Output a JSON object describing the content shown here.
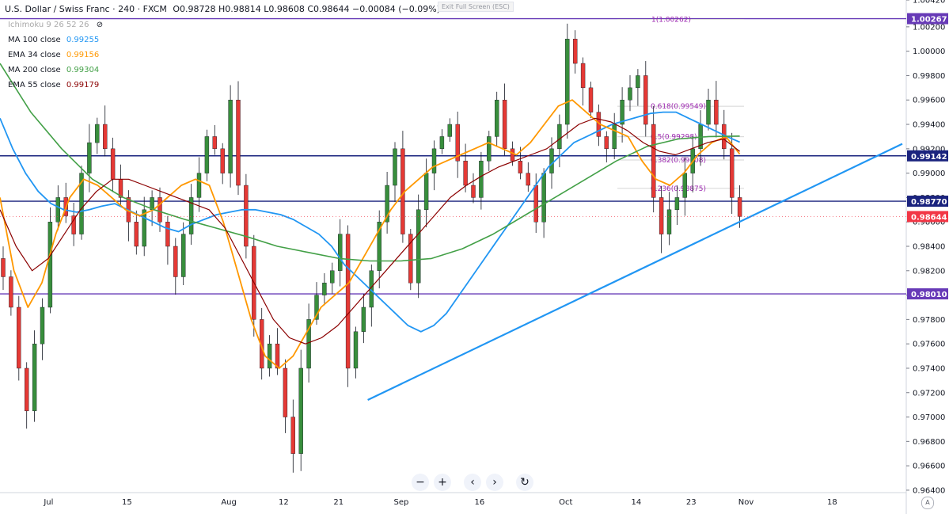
{
  "header": {
    "symbol": "U.S. Dollar / Swiss Franc · 240 · FXCM",
    "ohlc": "O0.98728  H0.98814  L0.98608  C0.98644  −0.00084 (−0.09%)"
  },
  "exit_fullscreen": "Exit Full Screen (ESC)",
  "indicators": [
    {
      "label": "MA 100 close",
      "value": "0.99255",
      "color": "#2196f3"
    },
    {
      "label": "EMA 34 close",
      "value": "0.99156",
      "color": "#ff9800"
    },
    {
      "label": "MA 200 close",
      "value": "0.99304",
      "color": "#43a047"
    },
    {
      "label": "EMA 55 close",
      "value": "0.99179",
      "color": "#8b0000"
    }
  ],
  "ichimoku_label": "Ichimoku 9 26 52 26",
  "toolbar": {
    "zoom_out": "−",
    "zoom_in": "+",
    "back": "‹",
    "forward": "›",
    "reset": "↻"
  },
  "auto_label": "A",
  "chart_data": {
    "type": "candlestick",
    "ylim": [
      0.9638,
      1.0042
    ],
    "y_ticks": [
      "1.00420",
      "1.00200",
      "1.00000",
      "0.99800",
      "0.99600",
      "0.99400",
      "0.99200",
      "0.99000",
      "0.98800",
      "0.98600",
      "0.98400",
      "0.98200",
      "0.98000",
      "0.97800",
      "0.97600",
      "0.97400",
      "0.97200",
      "0.97000",
      "0.96800",
      "0.96600",
      "0.96400"
    ],
    "x_ticks": [
      {
        "label": "Jul",
        "i": 6
      },
      {
        "label": "15",
        "i": 16
      },
      {
        "label": "Aug",
        "i": 29
      },
      {
        "label": "12",
        "i": 36
      },
      {
        "label": "21",
        "i": 43
      },
      {
        "label": "Sep",
        "i": 51
      },
      {
        "label": "16",
        "i": 61
      },
      {
        "label": "Oct",
        "i": 72
      },
      {
        "label": "14",
        "i": 81
      },
      {
        "label": "23",
        "i": 88
      },
      {
        "label": "Nov",
        "i": 95
      },
      {
        "label": "18",
        "i": 106
      }
    ],
    "candle_count": 95,
    "close_path": [
      0.9815,
      0.979,
      0.974,
      0.9705,
      0.976,
      0.979,
      0.986,
      0.988,
      0.9865,
      0.985,
      0.99,
      0.9925,
      0.994,
      0.992,
      0.9895,
      0.988,
      0.986,
      0.984,
      0.987,
      0.988,
      0.986,
      0.984,
      0.9815,
      0.985,
      0.988,
      0.99,
      0.993,
      0.992,
      0.99,
      0.996,
      0.989,
      0.984,
      0.978,
      0.974,
      0.976,
      0.974,
      0.97,
      0.967,
      0.974,
      0.978,
      0.98,
      0.981,
      0.982,
      0.985,
      0.974,
      0.977,
      0.979,
      0.982,
      0.986,
      0.989,
      0.992,
      0.985,
      0.981,
      0.987,
      0.99,
      0.992,
      0.993,
      0.994,
      0.991,
      0.989,
      0.988,
      0.991,
      0.993,
      0.996,
      0.992,
      0.991,
      0.99,
      0.989,
      0.986,
      0.99,
      0.992,
      0.994,
      1.001,
      0.999,
      0.997,
      0.995,
      0.993,
      0.992,
      0.994,
      0.996,
      0.997,
      0.998,
      0.994,
      0.988,
      0.985,
      0.987,
      0.988,
      0.99,
      0.992,
      0.994,
      0.996,
      0.994,
      0.992,
      0.988,
      0.98644
    ],
    "series": [
      {
        "name": "MA 100 close",
        "values": [
          0.9945,
          0.992,
          0.99,
          0.9885,
          0.9875,
          0.987,
          0.9868,
          0.987,
          0.9873,
          0.9875,
          0.987,
          0.9865,
          0.986,
          0.9855,
          0.9852,
          0.9858,
          0.9862,
          0.9866,
          0.9868,
          0.987,
          0.987,
          0.9868,
          0.9866,
          0.9862,
          0.9856,
          0.985,
          0.984,
          0.9825,
          0.9815,
          0.9805,
          0.9795,
          0.9785,
          0.9775,
          0.977,
          0.9775,
          0.9785,
          0.98,
          0.9815,
          0.983,
          0.9845,
          0.986,
          0.9875,
          0.989,
          0.9905,
          0.9915,
          0.9925,
          0.993,
          0.9935,
          0.994,
          0.9943,
          0.9946,
          0.9949,
          0.995,
          0.995,
          0.9945,
          0.994,
          0.9935,
          0.993,
          0.99255
        ]
      },
      {
        "name": "EMA 34 close",
        "values": [
          0.988,
          0.982,
          0.979,
          0.981,
          0.985,
          0.988,
          0.9895,
          0.989,
          0.988,
          0.987,
          0.9865,
          0.987,
          0.988,
          0.989,
          0.9895,
          0.989,
          0.986,
          0.982,
          0.978,
          0.975,
          0.974,
          0.975,
          0.977,
          0.979,
          0.98,
          0.981,
          0.983,
          0.985,
          0.987,
          0.9885,
          0.9895,
          0.9905,
          0.991,
          0.9915,
          0.992,
          0.9925,
          0.992,
          0.9915,
          0.9925,
          0.994,
          0.9955,
          0.996,
          0.995,
          0.994,
          0.9935,
          0.993,
          0.991,
          0.9895,
          0.989,
          0.99,
          0.9915,
          0.9925,
          0.993,
          0.99156
        ]
      },
      {
        "name": "MA 200 close",
        "values": [
          0.999,
          0.995,
          0.992,
          0.9895,
          0.988,
          0.987,
          0.9862,
          0.9855,
          0.9848,
          0.984,
          0.9835,
          0.983,
          0.9828,
          0.9828,
          0.983,
          0.9838,
          0.985,
          0.9865,
          0.988,
          0.9895,
          0.991,
          0.9922,
          0.9928,
          0.993,
          0.99304
        ]
      },
      {
        "name": "EMA 55 close",
        "values": [
          0.987,
          0.984,
          0.982,
          0.983,
          0.985,
          0.987,
          0.9885,
          0.9895,
          0.9895,
          0.989,
          0.9885,
          0.988,
          0.9875,
          0.987,
          0.9855,
          0.983,
          0.9805,
          0.978,
          0.9765,
          0.976,
          0.9765,
          0.9775,
          0.979,
          0.9805,
          0.982,
          0.9835,
          0.985,
          0.9865,
          0.988,
          0.989,
          0.9898,
          0.9905,
          0.991,
          0.9915,
          0.992,
          0.993,
          0.994,
          0.9945,
          0.9942,
          0.9935,
          0.9925,
          0.9918,
          0.9915,
          0.992,
          0.9925,
          0.9928,
          0.99179
        ]
      }
    ],
    "horizontal_lines": [
      {
        "value": 1.00267,
        "label": "1.00267",
        "color": "#673ab7"
      },
      {
        "value": 0.99142,
        "label": "0.99142",
        "color": "#1a237e"
      },
      {
        "value": 0.9877,
        "label": "0.98770",
        "color": "#1a237e"
      },
      {
        "value": 0.9801,
        "label": "0.98010",
        "color": "#673ab7"
      }
    ],
    "price_label": {
      "value": 0.98644,
      "label": "0.98644",
      "color": "#f23645"
    },
    "trendline": {
      "from": [
        44,
        0.9714
      ],
      "to": [
        112,
        0.9924
      ],
      "color": "#2196f3"
    },
    "fibonacci": [
      {
        "label": "1(1.00262)",
        "value": 1.00262
      },
      {
        "label": "0.618(0.99549)",
        "value": 0.99549
      },
      {
        "label": "0.5(0.99298)",
        "value": 0.99298
      },
      {
        "label": "0.382(0.99108)",
        "value": 0.99108
      },
      {
        "label": "0.236(0.98875)",
        "value": 0.98875
      }
    ]
  }
}
